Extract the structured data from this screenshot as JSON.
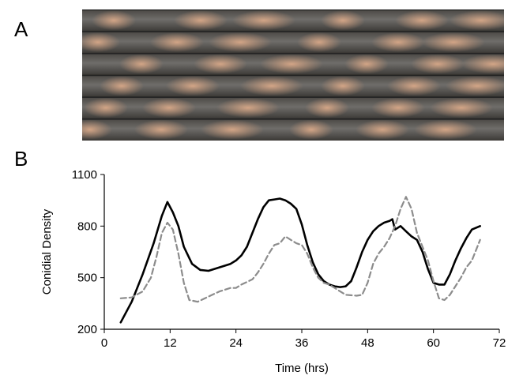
{
  "panels": {
    "a": "A",
    "b": "B"
  },
  "photo": {
    "tubes": 6,
    "colors": {
      "background": "#5a5651",
      "glass": "#6f6d6a",
      "band": "#c99a7a",
      "dark": "#2b2b2e"
    }
  },
  "chart_data": {
    "type": "line",
    "title": "",
    "xlabel": "Time (hrs)",
    "ylabel": "Conidial Density",
    "xlim": [
      0,
      72
    ],
    "ylim": [
      200,
      1100
    ],
    "xticks": [
      0,
      12,
      24,
      36,
      48,
      60,
      72
    ],
    "yticks": [
      200,
      500,
      800,
      1100
    ],
    "grid": false,
    "series": [
      {
        "style": "solid",
        "color": "#000000",
        "points": [
          [
            3,
            240
          ],
          [
            5,
            360
          ],
          [
            7,
            520
          ],
          [
            9,
            700
          ],
          [
            10.5,
            860
          ],
          [
            11.5,
            940
          ],
          [
            12.5,
            880
          ],
          [
            13.5,
            800
          ],
          [
            14.5,
            680
          ],
          [
            16,
            580
          ],
          [
            17.5,
            545
          ],
          [
            19,
            540
          ],
          [
            21,
            560
          ],
          [
            23,
            580
          ],
          [
            24,
            600
          ],
          [
            25,
            630
          ],
          [
            26,
            680
          ],
          [
            27,
            760
          ],
          [
            28,
            840
          ],
          [
            29,
            910
          ],
          [
            30,
            950
          ],
          [
            31,
            955
          ],
          [
            32,
            960
          ],
          [
            33,
            950
          ],
          [
            34,
            930
          ],
          [
            35,
            900
          ],
          [
            36,
            810
          ],
          [
            37,
            690
          ],
          [
            38,
            590
          ],
          [
            39,
            520
          ],
          [
            40,
            480
          ],
          [
            41,
            460
          ],
          [
            42,
            450
          ],
          [
            43,
            445
          ],
          [
            44,
            450
          ],
          [
            45,
            480
          ],
          [
            46,
            560
          ],
          [
            47,
            650
          ],
          [
            48,
            720
          ],
          [
            49,
            770
          ],
          [
            50,
            800
          ],
          [
            51,
            820
          ],
          [
            52,
            830
          ],
          [
            52.5,
            840
          ],
          [
            53,
            780
          ],
          [
            54,
            800
          ],
          [
            55,
            770
          ],
          [
            56,
            740
          ],
          [
            57,
            720
          ],
          [
            58,
            650
          ],
          [
            59,
            550
          ],
          [
            60,
            470
          ],
          [
            61,
            460
          ],
          [
            62,
            460
          ],
          [
            63,
            520
          ],
          [
            64,
            600
          ],
          [
            65,
            670
          ],
          [
            66,
            730
          ],
          [
            67,
            780
          ],
          [
            68.5,
            800
          ]
        ]
      },
      {
        "style": "dashed",
        "color": "#8c8c8c",
        "points": [
          [
            3,
            380
          ],
          [
            5,
            385
          ],
          [
            7,
            420
          ],
          [
            8.5,
            500
          ],
          [
            9.5,
            620
          ],
          [
            10.5,
            760
          ],
          [
            11.5,
            820
          ],
          [
            12.5,
            780
          ],
          [
            13.5,
            640
          ],
          [
            14.5,
            470
          ],
          [
            15.5,
            370
          ],
          [
            17,
            360
          ],
          [
            19,
            390
          ],
          [
            21,
            420
          ],
          [
            23,
            440
          ],
          [
            24,
            440
          ],
          [
            25,
            460
          ],
          [
            27,
            490
          ],
          [
            28,
            530
          ],
          [
            29,
            580
          ],
          [
            30,
            640
          ],
          [
            31,
            690
          ],
          [
            32,
            700
          ],
          [
            33,
            740
          ],
          [
            34,
            720
          ],
          [
            35,
            700
          ],
          [
            36,
            690
          ],
          [
            37,
            640
          ],
          [
            38,
            560
          ],
          [
            39,
            500
          ],
          [
            40,
            470
          ],
          [
            41,
            460
          ],
          [
            42,
            440
          ],
          [
            43,
            420
          ],
          [
            44,
            400
          ],
          [
            46,
            395
          ],
          [
            47,
            400
          ],
          [
            48,
            470
          ],
          [
            49,
            580
          ],
          [
            50,
            640
          ],
          [
            51,
            680
          ],
          [
            52,
            730
          ],
          [
            53,
            800
          ],
          [
            54,
            900
          ],
          [
            55,
            970
          ],
          [
            56,
            900
          ],
          [
            57,
            760
          ],
          [
            58,
            680
          ],
          [
            59,
            600
          ],
          [
            60,
            480
          ],
          [
            61,
            380
          ],
          [
            62,
            370
          ],
          [
            63,
            400
          ],
          [
            64,
            450
          ],
          [
            65,
            500
          ],
          [
            66,
            560
          ],
          [
            67,
            600
          ],
          [
            68.5,
            720
          ]
        ]
      }
    ]
  }
}
